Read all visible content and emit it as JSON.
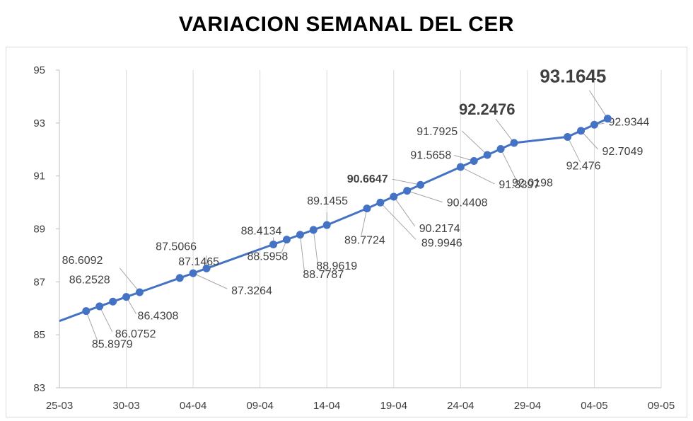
{
  "chart_data": {
    "type": "line",
    "title": "VARIACION SEMANAL DEL CER",
    "xlabel": "",
    "ylabel": "",
    "ylim": [
      83,
      95
    ],
    "y_ticks": [
      83,
      85,
      87,
      89,
      91,
      93,
      95
    ],
    "x_tick_labels": [
      "25-03",
      "30-03",
      "04-04",
      "09-04",
      "14-04",
      "19-04",
      "24-04",
      "29-04",
      "04-05",
      "09-05"
    ],
    "x_range_days": [
      0,
      45
    ],
    "grid": "vertical",
    "series": [
      {
        "color": "#4472c4",
        "points": [
          {
            "x": 0,
            "y": 85.52,
            "label": ""
          },
          {
            "x": 2,
            "y": 85.8979,
            "label": "85.8979"
          },
          {
            "x": 3,
            "y": 86.0752,
            "label": "86.0752"
          },
          {
            "x": 4,
            "y": 86.2528,
            "label": "86.2528"
          },
          {
            "x": 5,
            "y": 86.4308,
            "label": "86.4308"
          },
          {
            "x": 6,
            "y": 86.6092,
            "label": "86.6092"
          },
          {
            "x": 9,
            "y": 87.1465,
            "label": "87.1465"
          },
          {
            "x": 10,
            "y": 87.3264,
            "label": "87.3264"
          },
          {
            "x": 11,
            "y": 87.5066,
            "label": "87.5066"
          },
          {
            "x": 16,
            "y": 88.4134,
            "label": "88.4134"
          },
          {
            "x": 17,
            "y": 88.5958,
            "label": "88.5958"
          },
          {
            "x": 18,
            "y": 88.7787,
            "label": "88.7787"
          },
          {
            "x": 19,
            "y": 88.9619,
            "label": "88.9619"
          },
          {
            "x": 20,
            "y": 89.1455,
            "label": "89.1455"
          },
          {
            "x": 23,
            "y": 89.7724,
            "label": "89.7724"
          },
          {
            "x": 24,
            "y": 89.9946,
            "label": "89.9946"
          },
          {
            "x": 25,
            "y": 90.2174,
            "label": "90.2174"
          },
          {
            "x": 26,
            "y": 90.4408,
            "label": "90.4408"
          },
          {
            "x": 27,
            "y": 90.6647,
            "label": "90.6647"
          },
          {
            "x": 30,
            "y": 91.3397,
            "label": "91.3397"
          },
          {
            "x": 31,
            "y": 91.5658,
            "label": "91.5658"
          },
          {
            "x": 32,
            "y": 91.7925,
            "label": "91.7925"
          },
          {
            "x": 33,
            "y": 92.0198,
            "label": "92.0198"
          },
          {
            "x": 34,
            "y": 92.2476,
            "label": "92.2476"
          },
          {
            "x": 38,
            "y": 92.476,
            "label": "92.476"
          },
          {
            "x": 39,
            "y": 92.7049,
            "label": "92.7049"
          },
          {
            "x": 40,
            "y": 92.9344,
            "label": "92.9344"
          },
          {
            "x": 41,
            "y": 93.1645,
            "label": "93.1645"
          }
        ]
      }
    ]
  }
}
